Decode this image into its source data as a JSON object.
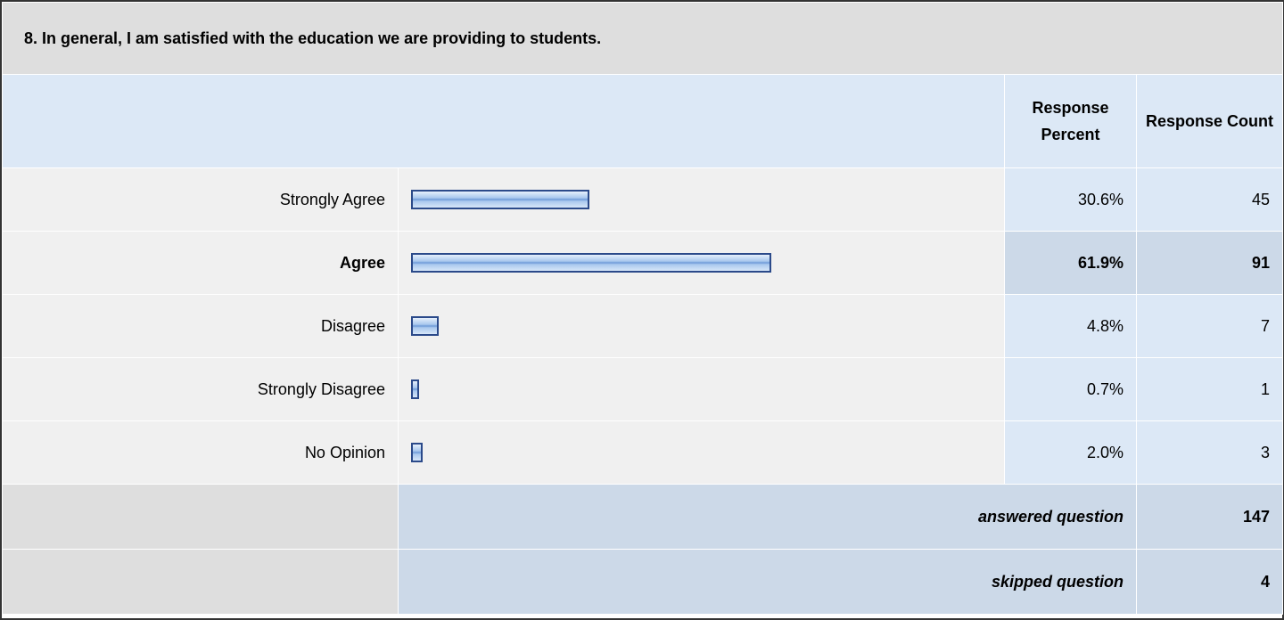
{
  "question": "8. In general, I am satisfied with the education we are providing to students.",
  "headers": {
    "percent": "Response Percent",
    "count": "Response Count"
  },
  "rows": [
    {
      "label": "Strongly Agree",
      "percent": 30.6,
      "percent_label": "30.6%",
      "count": 45
    },
    {
      "label": "Agree",
      "percent": 61.9,
      "percent_label": "61.9%",
      "count": 91
    },
    {
      "label": "Disagree",
      "percent": 4.8,
      "percent_label": "4.8%",
      "count": 7
    },
    {
      "label": "Strongly Disagree",
      "percent": 0.7,
      "percent_label": "0.7%",
      "count": 1
    },
    {
      "label": "No Opinion",
      "percent": 2.0,
      "percent_label": "2.0%",
      "count": 3
    }
  ],
  "footer": [
    {
      "label": "answered question",
      "count": 147
    },
    {
      "label": "skipped question",
      "count": 4
    }
  ]
}
